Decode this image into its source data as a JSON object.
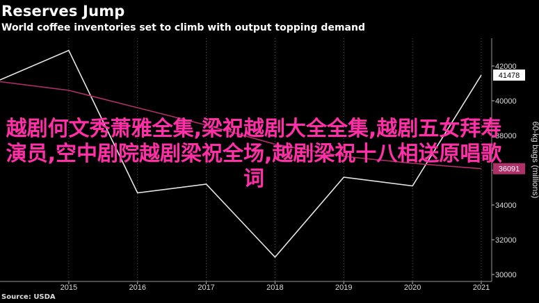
{
  "header": {
    "title": "Reserves Jump",
    "subtitle": "World coffee inventories set to climb with output topping demand"
  },
  "footer": {
    "source": "Source: USDA"
  },
  "overlay": {
    "text": "越剧何文秀萧雅全集,梁祝越剧大全全集,越剧五女拜寿演员,空中剧院越剧梁祝全场,越剧梁祝十八相送原唱歌词"
  },
  "colors": {
    "background": "#000000",
    "line_white": "#e6e6e6",
    "line_magenta": "#b0306a",
    "overlay": "#ff2fa7"
  },
  "chart_data": {
    "type": "line",
    "title": "Reserves Jump",
    "subtitle": "World coffee inventories set to climb with output topping demand",
    "ylabel": "60-kg bags (millions)",
    "xlabel": "",
    "x": [
      2014,
      2015,
      2016,
      2017,
      2018,
      2019,
      2020,
      2021
    ],
    "x_tick_labels": [
      "2015",
      "2016",
      "2017",
      "2018",
      "2019",
      "2020",
      "2021"
    ],
    "y_tick_labels": [
      "30000",
      "32000",
      "34000",
      "36000",
      "38000",
      "40000",
      "42000"
    ],
    "ylim": [
      29600,
      43600
    ],
    "grid": "vertical dotted",
    "series": [
      {
        "values": [
          41200,
          42900,
          34700,
          35200,
          31000,
          35600,
          35100,
          41478
        ],
        "end_label": "41478",
        "color": "#e6e6e6"
      },
      {
        "values": [
          41100,
          40600,
          39600,
          38600,
          37500,
          36800,
          36400,
          36091
        ],
        "end_label": "36091",
        "color": "#b0306a"
      }
    ]
  }
}
